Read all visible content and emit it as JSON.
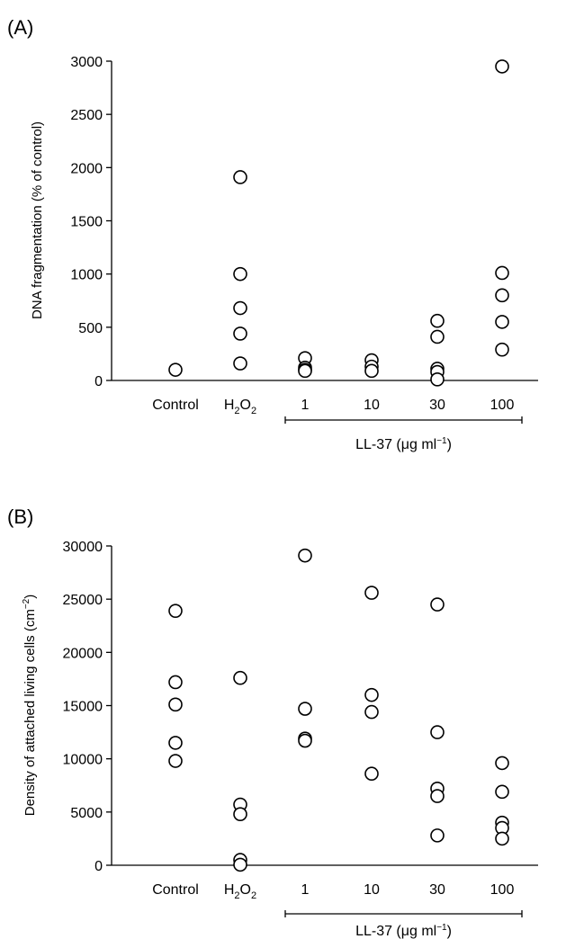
{
  "chart_data": [
    {
      "panel_label": "(A)",
      "type": "scatter",
      "categories": [
        "Control",
        "H2O2",
        "1",
        "10",
        "30",
        "100"
      ],
      "ylabel": "DNA fragmentation (% of  control)",
      "ylim": [
        0,
        3000
      ],
      "yticks": [
        "0",
        "500",
        "1000",
        "1500",
        "2000",
        "2500",
        "3000"
      ],
      "group_bracket": {
        "label": "LL-37 (μg ml−1)",
        "from_category": "1",
        "to_category": "100"
      },
      "series": [
        {
          "points": [
            {
              "x": "Control",
              "y": 100
            },
            {
              "x": "H2O2",
              "y": 1910
            },
            {
              "x": "H2O2",
              "y": 1000
            },
            {
              "x": "H2O2",
              "y": 680
            },
            {
              "x": "H2O2",
              "y": 440
            },
            {
              "x": "H2O2",
              "y": 160
            },
            {
              "x": "1",
              "y": 210
            },
            {
              "x": "1",
              "y": 120
            },
            {
              "x": "1",
              "y": 100
            },
            {
              "x": "1",
              "y": 90
            },
            {
              "x": "10",
              "y": 190
            },
            {
              "x": "10",
              "y": 130
            },
            {
              "x": "10",
              "y": 90
            },
            {
              "x": "30",
              "y": 560
            },
            {
              "x": "30",
              "y": 410
            },
            {
              "x": "30",
              "y": 110
            },
            {
              "x": "30",
              "y": 80
            },
            {
              "x": "30",
              "y": 10
            },
            {
              "x": "100",
              "y": 2950
            },
            {
              "x": "100",
              "y": 1010
            },
            {
              "x": "100",
              "y": 800
            },
            {
              "x": "100",
              "y": 550
            },
            {
              "x": "100",
              "y": 290
            }
          ]
        }
      ],
      "grid": false,
      "legend": "none"
    },
    {
      "panel_label": "(B)",
      "type": "scatter",
      "categories": [
        "Control",
        "H2O2",
        "1",
        "10",
        "30",
        "100"
      ],
      "ylabel": "Density of attached living cells (cm−2)",
      "ylim": [
        0,
        30000
      ],
      "yticks": [
        "0",
        "5000",
        "10000",
        "15000",
        "20000",
        "25000",
        "30000"
      ],
      "group_bracket": {
        "label": "LL-37 (μg ml−1)",
        "from_category": "1",
        "to_category": "100"
      },
      "series": [
        {
          "points": [
            {
              "x": "Control",
              "y": 23900
            },
            {
              "x": "Control",
              "y": 17200
            },
            {
              "x": "Control",
              "y": 15100
            },
            {
              "x": "Control",
              "y": 11500
            },
            {
              "x": "Control",
              "y": 9800
            },
            {
              "x": "H2O2",
              "y": 17600
            },
            {
              "x": "H2O2",
              "y": 5700
            },
            {
              "x": "H2O2",
              "y": 4800
            },
            {
              "x": "H2O2",
              "y": 500
            },
            {
              "x": "H2O2",
              "y": 50
            },
            {
              "x": "1",
              "y": 29100
            },
            {
              "x": "1",
              "y": 14700
            },
            {
              "x": "1",
              "y": 11900
            },
            {
              "x": "1",
              "y": 11700
            },
            {
              "x": "10",
              "y": 25600
            },
            {
              "x": "10",
              "y": 16000
            },
            {
              "x": "10",
              "y": 14400
            },
            {
              "x": "10",
              "y": 8600
            },
            {
              "x": "30",
              "y": 24500
            },
            {
              "x": "30",
              "y": 12500
            },
            {
              "x": "30",
              "y": 7200
            },
            {
              "x": "30",
              "y": 6500
            },
            {
              "x": "30",
              "y": 2800
            },
            {
              "x": "100",
              "y": 9600
            },
            {
              "x": "100",
              "y": 6900
            },
            {
              "x": "100",
              "y": 4000
            },
            {
              "x": "100",
              "y": 3500
            },
            {
              "x": "100",
              "y": 2500
            }
          ]
        }
      ],
      "grid": false,
      "legend": "none"
    }
  ]
}
